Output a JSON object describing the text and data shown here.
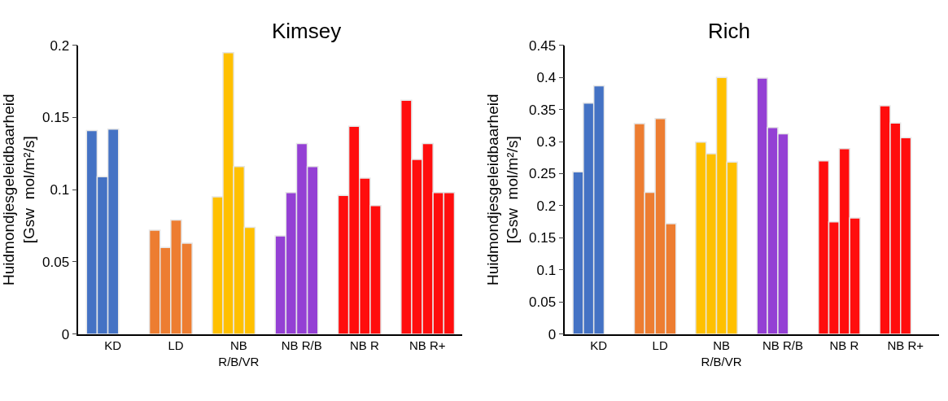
{
  "chart_data": [
    {
      "type": "bar",
      "title": "Kimsey",
      "ylabel": "Huidmondjesgeleidbaarheid\n[Gsw  mol/m²/s]",
      "categories": [
        "KD",
        "LD",
        "NB R/B/VR",
        "NB R/B",
        "NB R",
        "NB R+"
      ],
      "series": [
        {
          "colors": [
            "#4472c4",
            "#ed7d31",
            "#ffc000",
            "#9440d4",
            "#ff0d0d",
            "#ff0d0d"
          ],
          "values": [
            0.141,
            0.072,
            0.095,
            0.068,
            0.096,
            0.162
          ]
        },
        {
          "colors": [
            "#4472c4",
            "#ed7d31",
            "#ffc000",
            "#9440d4",
            "#ff0d0d",
            "#ff0d0d"
          ],
          "values": [
            0.109,
            0.06,
            0.195,
            0.098,
            0.144,
            0.121
          ]
        },
        {
          "colors": [
            "#4472c4",
            "#ed7d31",
            "#ffc000",
            "#9440d4",
            "#ff0d0d",
            "#ff0d0d"
          ],
          "values": [
            0.142,
            0.079,
            0.116,
            0.132,
            0.108,
            0.132
          ]
        },
        {
          "colors": [
            "#4472c4",
            "#ed7d31",
            "#ffc000",
            "#9440d4",
            "#ff0d0d",
            "#ff0d0d"
          ],
          "values": [
            null,
            0.063,
            0.074,
            0.116,
            0.089,
            0.098
          ]
        },
        {
          "colors": [
            "#4472c4",
            "#ed7d31",
            "#ffc000",
            "#9440d4",
            "#ff0d0d",
            "#ff0d0d"
          ],
          "values": [
            null,
            null,
            null,
            null,
            null,
            0.098
          ]
        }
      ],
      "ylim": [
        0,
        0.2
      ],
      "yticks": [
        0,
        0.05,
        0.1,
        0.15,
        0.2
      ]
    },
    {
      "type": "bar",
      "title": "Rich",
      "ylabel": "Huidmondjesgeleidbaarheid\n[Gsw  mol/m²/s]",
      "categories": [
        "KD",
        "LD",
        "NB R/B/VR",
        "NB R/B",
        "NB R",
        "NB R+"
      ],
      "series": [
        {
          "colors": [
            "#4472c4",
            "#ed7d31",
            "#ffc000",
            "#9440d4",
            "#ff0d0d",
            "#ff0d0d"
          ],
          "values": [
            0.253,
            0.328,
            0.299,
            0.399,
            0.27,
            0.356
          ]
        },
        {
          "colors": [
            "#4472c4",
            "#ed7d31",
            "#ffc000",
            "#9440d4",
            "#ff0d0d",
            "#ff0d0d"
          ],
          "values": [
            0.36,
            0.221,
            0.281,
            0.322,
            0.175,
            0.329
          ]
        },
        {
          "colors": [
            "#4472c4",
            "#ed7d31",
            "#ffc000",
            "#9440d4",
            "#ff0d0d",
            "#ff0d0d"
          ],
          "values": [
            0.387,
            0.336,
            0.4,
            0.312,
            0.289,
            0.306
          ]
        },
        {
          "colors": [
            "#4472c4",
            "#ed7d31",
            "#ffc000",
            "#9440d4",
            "#ff0d0d",
            "#ff0d0d"
          ],
          "values": [
            null,
            0.172,
            0.268,
            null,
            0.181,
            null
          ]
        }
      ],
      "ylim": [
        0,
        0.45
      ],
      "yticks": [
        0,
        0.05,
        0.1,
        0.15,
        0.2,
        0.25,
        0.3,
        0.35,
        0.4,
        0.45
      ]
    }
  ]
}
